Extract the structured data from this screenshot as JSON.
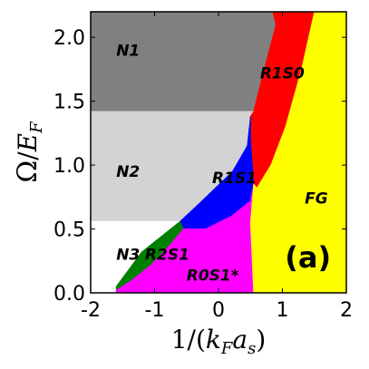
{
  "chart_data": {
    "type": "area",
    "title": "",
    "xlabel": "1/(k_F a_s)",
    "ylabel": "Ω/E_F",
    "xlim": [
      -2,
      2
    ],
    "ylim": [
      0,
      2.2
    ],
    "x_ticks": [
      -2,
      -1,
      0,
      1,
      2
    ],
    "x_tick_labels": [
      "-2",
      "-1",
      "0",
      "1",
      "2"
    ],
    "y_ticks": [
      0.0,
      0.5,
      1.0,
      1.5,
      2.0
    ],
    "y_tick_labels": [
      "0.0",
      "0.5",
      "1.0",
      "1.5",
      "2.0"
    ],
    "grid": false,
    "panel_label": "(a)",
    "regions": [
      {
        "name": "N1",
        "color": "#808080",
        "label_at": [
          -1.6,
          1.9
        ],
        "polygon": [
          [
            -2,
            2.2
          ],
          [
            0.85,
            2.2
          ],
          [
            0.9,
            2.1
          ],
          [
            0.7,
            1.72
          ],
          [
            0.55,
            1.42
          ],
          [
            -2,
            1.42
          ]
        ]
      },
      {
        "name": "N2",
        "color": "#d3d3d3",
        "label_at": [
          -1.6,
          0.95
        ],
        "polygon": [
          [
            -2,
            1.42
          ],
          [
            0.55,
            1.42
          ],
          [
            0.45,
            1.15
          ],
          [
            0.22,
            0.95
          ],
          [
            -0.3,
            0.7
          ],
          [
            -0.6,
            0.56
          ],
          [
            -2,
            0.56
          ]
        ]
      },
      {
        "name": "N3",
        "color": "#ffffff",
        "label_at": [
          -1.6,
          0.3
        ],
        "polygon": [
          [
            -2,
            0.56
          ],
          [
            -0.6,
            0.56
          ],
          [
            -1.2,
            0.32
          ],
          [
            -1.6,
            0.05
          ],
          [
            -1.6,
            0
          ],
          [
            -2,
            0
          ]
        ]
      },
      {
        "name": "R1S0",
        "color": "#ff0000",
        "label_at": [
          0.65,
          1.72
        ],
        "polygon": [
          [
            0.85,
            2.2
          ],
          [
            1.5,
            2.2
          ],
          [
            1.3,
            1.75
          ],
          [
            1.05,
            1.3
          ],
          [
            0.82,
            1.0
          ],
          [
            0.6,
            0.82
          ],
          [
            0.55,
            0.85
          ],
          [
            0.5,
            1.2
          ],
          [
            0.5,
            1.38
          ],
          [
            0.55,
            1.42
          ],
          [
            0.7,
            1.72
          ],
          [
            0.9,
            2.1
          ]
        ]
      },
      {
        "name": "R1S1",
        "color": "#0000ff",
        "label_at": [
          -0.1,
          0.9
        ],
        "polygon": [
          [
            0.5,
            1.38
          ],
          [
            0.5,
            1.2
          ],
          [
            0.55,
            0.85
          ],
          [
            0.5,
            0.72
          ],
          [
            0.2,
            0.6
          ],
          [
            -0.2,
            0.5
          ],
          [
            -0.55,
            0.5
          ],
          [
            -0.6,
            0.56
          ],
          [
            -0.3,
            0.7
          ],
          [
            0.22,
            0.95
          ],
          [
            0.45,
            1.15
          ]
        ]
      },
      {
        "name": "R2S1",
        "color": "#008000",
        "label_at": [
          -1.15,
          0.3
        ],
        "polygon": [
          [
            -0.6,
            0.56
          ],
          [
            -0.55,
            0.5
          ],
          [
            -0.75,
            0.38
          ],
          [
            -1.05,
            0.22
          ],
          [
            -1.35,
            0.1
          ],
          [
            -1.6,
            0.02
          ],
          [
            -1.6,
            0.05
          ],
          [
            -1.2,
            0.32
          ]
        ]
      },
      {
        "name": "R0S1*",
        "color": "#ff00ff",
        "label_at": [
          -0.5,
          0.14
        ],
        "polygon": [
          [
            -1.6,
            0.02
          ],
          [
            -1.35,
            0.1
          ],
          [
            -1.05,
            0.22
          ],
          [
            -0.75,
            0.38
          ],
          [
            -0.55,
            0.5
          ],
          [
            -0.2,
            0.5
          ],
          [
            0.2,
            0.6
          ],
          [
            0.5,
            0.72
          ],
          [
            0.55,
            0.85
          ],
          [
            0.5,
            0.55
          ],
          [
            0.55,
            0
          ],
          [
            -1.6,
            0
          ]
        ]
      },
      {
        "name": "FG",
        "color": "#ffff00",
        "label_at": [
          1.35,
          0.74
        ],
        "polygon": [
          [
            0.55,
            0
          ],
          [
            2,
            0
          ],
          [
            2,
            2.2
          ],
          [
            1.5,
            2.2
          ],
          [
            1.3,
            1.75
          ],
          [
            1.05,
            1.3
          ],
          [
            0.82,
            1.0
          ],
          [
            0.6,
            0.82
          ],
          [
            0.55,
            0.85
          ],
          [
            0.5,
            0.55
          ]
        ]
      }
    ]
  }
}
